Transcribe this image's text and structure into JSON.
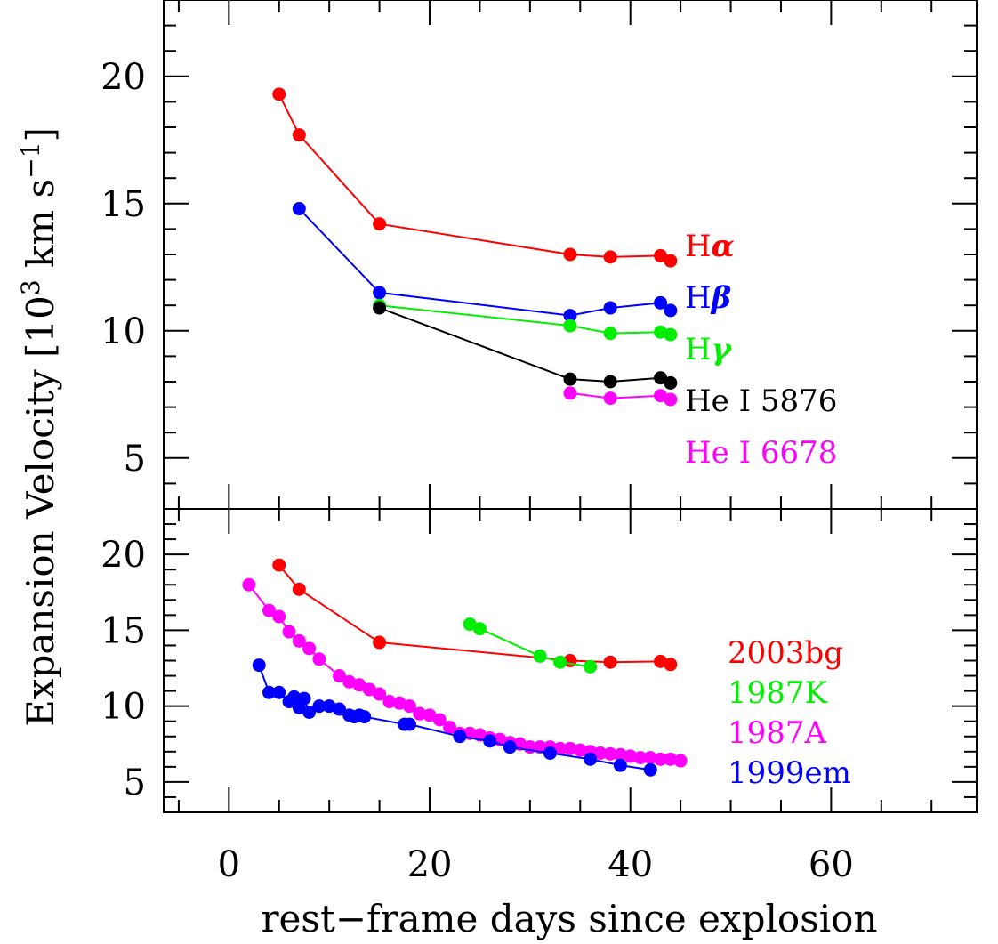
{
  "chart_data": [
    {
      "type": "line",
      "panel": "top",
      "xlim": [
        -6.5,
        74.5
      ],
      "ylim": [
        3,
        23
      ],
      "xticks": [
        0,
        20,
        40,
        60
      ],
      "yticks": [
        5,
        10,
        15,
        20
      ],
      "ytick_labels": [
        "5",
        "10",
        "15",
        "20"
      ],
      "grid": false,
      "legend": "right",
      "series": [
        {
          "name": "Hα",
          "legend_text": "H",
          "legend_symbol": "α",
          "color": "#ff0000",
          "x": [
            5,
            7,
            15,
            34,
            38,
            43,
            44
          ],
          "y": [
            19.3,
            17.7,
            14.2,
            13.0,
            12.9,
            12.95,
            12.75
          ]
        },
        {
          "name": "Hβ",
          "legend_text": "H",
          "legend_symbol": "β",
          "color": "#0000ff",
          "x": [
            7,
            15,
            34,
            38,
            43,
            44
          ],
          "y": [
            14.8,
            11.5,
            10.6,
            10.9,
            11.1,
            10.8
          ]
        },
        {
          "name": "Hγ",
          "legend_text": "H",
          "legend_symbol": "γ",
          "color": "#00ee00",
          "x": [
            15,
            34,
            38,
            43,
            44
          ],
          "y": [
            11.0,
            10.2,
            9.9,
            9.95,
            9.85
          ]
        },
        {
          "name": "He I 5876",
          "legend_text": "He I 5876",
          "legend_symbol": "",
          "color": "#000000",
          "x": [
            15,
            34,
            38,
            43,
            44
          ],
          "y": [
            10.9,
            8.1,
            8.0,
            8.15,
            7.95
          ]
        },
        {
          "name": "He I 6678",
          "legend_text": "He I 6678",
          "legend_symbol": "",
          "color": "#ff00ff",
          "x": [
            34,
            38,
            43,
            44
          ],
          "y": [
            7.55,
            7.35,
            7.45,
            7.3
          ]
        }
      ]
    },
    {
      "type": "line",
      "panel": "bottom",
      "xlim": [
        -6.5,
        74.5
      ],
      "ylim": [
        3,
        23
      ],
      "xticks": [
        0,
        20,
        40,
        60
      ],
      "xtick_labels": [
        "0",
        "20",
        "40",
        "60"
      ],
      "yticks": [
        5,
        10,
        15,
        20
      ],
      "ytick_labels": [
        "5",
        "10",
        "15",
        "20"
      ],
      "xlabel": "rest−frame days since explosion",
      "grid": false,
      "legend": "right",
      "series": [
        {
          "name": "2003bg",
          "color": "#ff0000",
          "x": [
            5,
            7,
            15,
            34,
            38,
            43,
            44
          ],
          "y": [
            19.3,
            17.7,
            14.2,
            13.0,
            12.9,
            12.95,
            12.75
          ]
        },
        {
          "name": "1987K",
          "color": "#00ee00",
          "x": [
            24,
            25,
            31,
            33,
            36
          ],
          "y": [
            15.4,
            15.1,
            13.3,
            12.9,
            12.6
          ]
        },
        {
          "name": "1987A",
          "color": "#ff00ff",
          "x": [
            2,
            4,
            5,
            6,
            7,
            8,
            9,
            11,
            12,
            13,
            14,
            15,
            16,
            17,
            18,
            19,
            20,
            21,
            22,
            23,
            24,
            25,
            26,
            27,
            28,
            29,
            30,
            31,
            32,
            33,
            34,
            35,
            36,
            37,
            38,
            39,
            40,
            41,
            42,
            43,
            44,
            45
          ],
          "y": [
            18.0,
            16.3,
            15.9,
            14.9,
            14.3,
            13.8,
            13.1,
            12.0,
            11.6,
            11.4,
            11.1,
            10.8,
            10.3,
            10.2,
            10.0,
            9.5,
            9.4,
            9.1,
            8.6,
            8.2,
            8.2,
            8.1,
            7.9,
            7.8,
            7.6,
            7.5,
            7.3,
            7.3,
            7.3,
            7.2,
            7.2,
            7.1,
            7.0,
            6.9,
            6.85,
            6.8,
            6.7,
            6.6,
            6.6,
            6.5,
            6.5,
            6.4
          ]
        },
        {
          "name": "1999em",
          "color": "#0000ff",
          "x": [
            3,
            4,
            5,
            6,
            6.5,
            7,
            7.5,
            8,
            9,
            10,
            11,
            12,
            12.5,
            13,
            13.5,
            17.5,
            18,
            23,
            26,
            28,
            32,
            36,
            39,
            42
          ],
          "y": [
            12.7,
            10.9,
            10.9,
            10.3,
            10.6,
            9.9,
            10.5,
            9.6,
            10.0,
            10.0,
            9.8,
            9.4,
            9.3,
            9.4,
            9.3,
            8.8,
            8.8,
            8.0,
            7.7,
            7.3,
            6.9,
            6.5,
            6.1,
            5.8
          ]
        }
      ]
    }
  ],
  "ylabel_main": "Expansion Velocity [10",
  "ylabel_exp1": "3",
  "ylabel_mid": " km s",
  "ylabel_exp2": "−1",
  "ylabel_end": "]"
}
